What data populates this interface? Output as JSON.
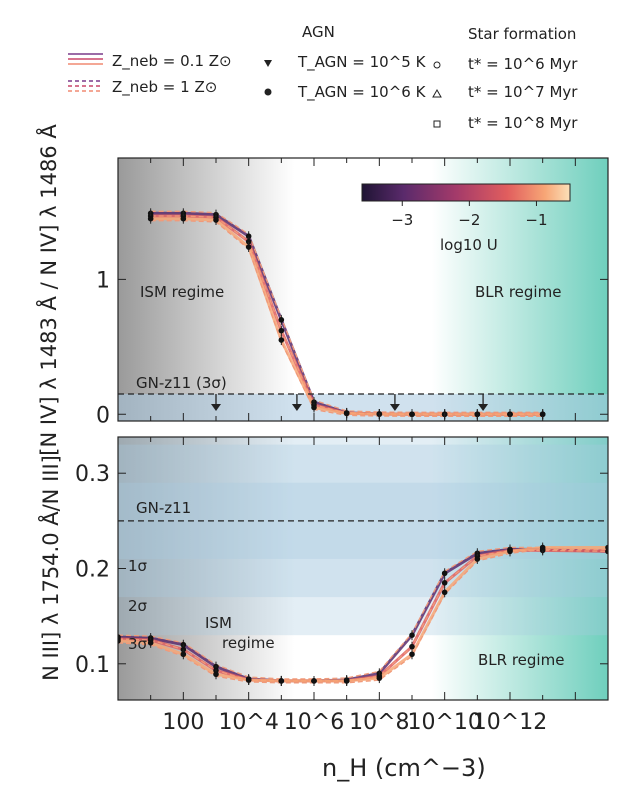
{
  "legend": {
    "zneb_01": "Z_neb = 0.1 Z⊙",
    "zneb_1": "Z_neb = 1 Z⊙",
    "agn_header": "AGN",
    "agn_1e5": "T_AGN = 10^5 K",
    "agn_1e6": "T_AGN = 10^6 K",
    "sf_header": "Star formation",
    "sf_1e6": "t* = 10^6 Myr",
    "sf_1e7": "t* = 10^7 Myr",
    "sf_1e8": "t* = 10^8 Myr"
  },
  "colors": {
    "line_01": "#e04d6b",
    "line_1": "#f09a7a",
    "colorbar": [
      "#1f1434",
      "#5a2a6b",
      "#a33a6a",
      "#e15e5e",
      "#f7a676",
      "#fbe0b8"
    ],
    "ism": "#9a9a9a",
    "blr": "#7fd3c3",
    "obs_band": "#a9c9e0"
  },
  "chart_data": [
    {
      "type": "line",
      "ylabel": "[N IV] λ 1483 Å / N IV] λ 1486 Å",
      "xlabel": "",
      "x_scale": "log",
      "xlim": [
        1,
        1000000000000000.0
      ],
      "ylim": [
        -0.05,
        1.9
      ],
      "yticks": [
        0,
        1
      ],
      "ytick_labels": [
        "0",
        "1"
      ],
      "regimes": [
        "ISM regime",
        "BLR regime"
      ],
      "observation": {
        "label": "GN-z11 (3σ)",
        "value": 0.15
      },
      "upper_limit_x": [
        1000,
        300000,
        300000000.0,
        150000000000.0
      ],
      "colorbar": {
        "label": "log10 U",
        "ticks": [
          -3,
          -2,
          -1
        ],
        "tick_labels": [
          "−3",
          "−2",
          "−1"
        ],
        "range": [
          -3.6,
          -0.5
        ]
      },
      "x": [
        10,
        100,
        1000,
        10000.0,
        100000.0,
        1000000.0,
        10000000.0,
        100000000.0,
        1000000000.0,
        10000000000.0,
        100000000000.0,
        1000000000000.0,
        10000000000000.0
      ],
      "series": [
        {
          "values": [
            1.49,
            1.49,
            1.48,
            1.32,
            0.7,
            0.09,
            0.01,
            0.002,
            0.0,
            0.0,
            0.0,
            0.0,
            0.0
          ]
        },
        {
          "values": [
            1.47,
            1.47,
            1.46,
            1.28,
            0.62,
            0.07,
            0.008,
            0.002,
            0.0,
            0.0,
            0.0,
            0.0,
            0.0
          ]
        },
        {
          "values": [
            1.45,
            1.45,
            1.44,
            1.24,
            0.55,
            0.05,
            0.006,
            0.001,
            0.0,
            0.0,
            0.0,
            0.0,
            0.0
          ]
        }
      ]
    },
    {
      "type": "line",
      "ylabel": "N III] λ 1754.0 Å/N III]",
      "xlabel": "n_H (cm^−3)",
      "x_scale": "log",
      "xlim": [
        1,
        1000000000000000.0
      ],
      "ylim": [
        0.062,
        0.338
      ],
      "yticks": [
        0.1,
        0.2,
        0.3
      ],
      "ytick_labels": [
        "0.1",
        "0.2",
        "0.3"
      ],
      "xtick_labels": [
        "100",
        "10^4",
        "10^6",
        "10^8",
        "10^10",
        "10^12"
      ],
      "regimes": [
        "ISM regime",
        "BLR regime"
      ],
      "observation": {
        "label": "GN-z11",
        "value": 0.25,
        "sigma_labels": [
          "1σ",
          "2σ",
          "3σ"
        ],
        "sigma_bands": [
          [
            0.21,
            0.29
          ],
          [
            0.17,
            0.33
          ],
          [
            0.13,
            0.37
          ]
        ]
      },
      "x": [
        1,
        10,
        100,
        1000,
        10000.0,
        100000.0,
        1000000.0,
        10000000.0,
        100000000.0,
        1000000000.0,
        10000000000.0,
        100000000000.0,
        1000000000000.0,
        10000000000000.0,
        1000000000000000.0
      ],
      "series": [
        {
          "values": [
            0.128,
            0.127,
            0.12,
            0.097,
            0.084,
            0.082,
            0.082,
            0.083,
            0.09,
            0.13,
            0.195,
            0.216,
            0.22,
            0.22,
            0.218
          ]
        },
        {
          "values": [
            0.126,
            0.125,
            0.115,
            0.093,
            0.083,
            0.082,
            0.082,
            0.082,
            0.087,
            0.118,
            0.185,
            0.213,
            0.219,
            0.219,
            0.218
          ]
        },
        {
          "values": [
            0.124,
            0.122,
            0.11,
            0.089,
            0.083,
            0.082,
            0.082,
            0.082,
            0.085,
            0.11,
            0.175,
            0.21,
            0.218,
            0.222,
            0.222
          ]
        }
      ]
    }
  ]
}
